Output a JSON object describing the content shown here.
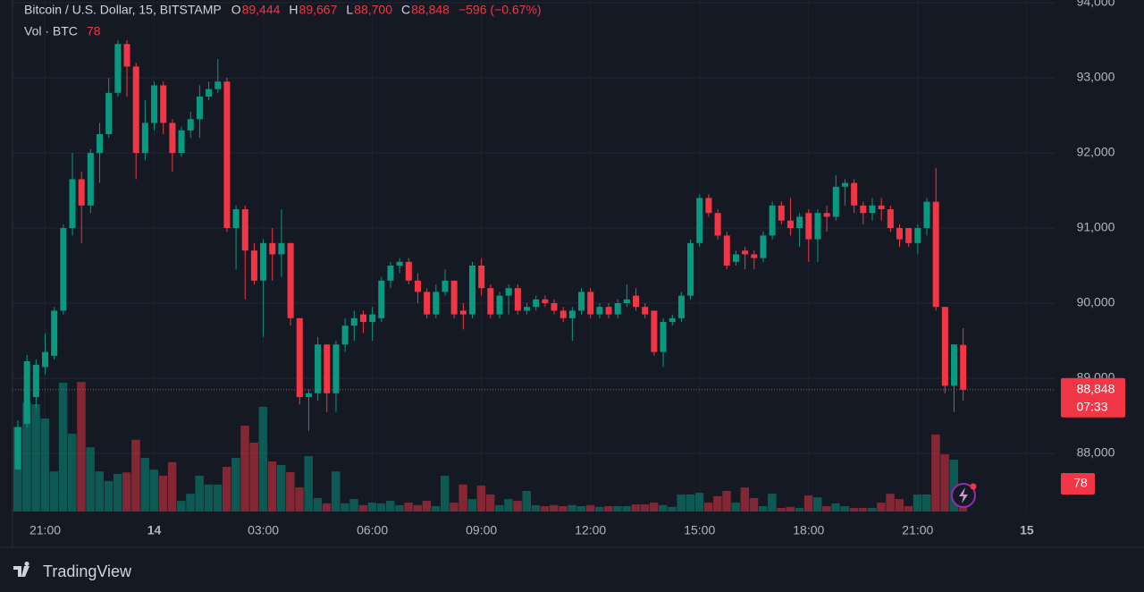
{
  "chart_data": {
    "type": "candlestick",
    "legend": {
      "title": "Bitcoin / U.S. Dollar, 15, BITSTAMP",
      "items": [
        {
          "key": "O",
          "value": "89,444"
        },
        {
          "key": "H",
          "value": "89,667"
        },
        {
          "key": "L",
          "value": "88,700"
        },
        {
          "key": "C",
          "value": "88,848"
        }
      ],
      "change": "−596 (−0.67%)",
      "volume_title": "Vol · BTC",
      "volume_value": "78"
    },
    "categories": [
      "20:15",
      "20:30",
      "20:45",
      "21:00",
      "21:15",
      "21:30",
      "21:45",
      "22:00",
      "22:15",
      "22:30",
      "22:45",
      "23:00",
      "23:15",
      "23:30",
      "23:45",
      "00:00",
      "00:15",
      "00:30",
      "00:45",
      "01:00",
      "01:15",
      "01:30",
      "01:45",
      "02:00",
      "02:15",
      "02:30",
      "02:45",
      "03:00",
      "03:15",
      "03:30",
      "03:45",
      "04:00",
      "04:15",
      "04:30",
      "04:45",
      "05:00",
      "05:15",
      "05:30",
      "05:45",
      "06:00",
      "06:15",
      "06:30",
      "06:45",
      "07:00",
      "07:15",
      "07:30",
      "07:45",
      "08:00",
      "08:15",
      "08:30",
      "08:45",
      "09:00",
      "09:15",
      "09:30",
      "09:45",
      "10:00",
      "10:15",
      "10:30",
      "10:45",
      "11:00",
      "11:15",
      "11:30",
      "11:45",
      "12:00",
      "12:15",
      "12:30",
      "12:45",
      "13:00",
      "13:15",
      "13:30",
      "13:45",
      "14:00",
      "14:15",
      "14:30",
      "14:45",
      "15:00",
      "15:15",
      "15:30",
      "15:45",
      "16:00",
      "16:15",
      "16:30",
      "16:45",
      "17:00",
      "17:15",
      "17:30",
      "17:45",
      "18:00",
      "18:15",
      "18:30",
      "18:45",
      "19:00",
      "19:15",
      "19:30",
      "19:45",
      "20:00",
      "20:15",
      "20:30",
      "20:45",
      "21:00",
      "21:15",
      "21:30",
      "21:45",
      "22:00",
      "22:15"
    ],
    "open": [
      87786,
      88393,
      88750,
      89150,
      89300,
      89900,
      91000,
      91650,
      91300,
      92000,
      92250,
      92800,
      93450,
      93150,
      92000,
      92400,
      92900,
      92400,
      92000,
      92300,
      92450,
      92750,
      92850,
      92950,
      91000,
      91250,
      90700,
      90300,
      90800,
      90650,
      90800,
      89800,
      88750,
      88800,
      89450,
      88800,
      89450,
      89700,
      89850,
      89750,
      89800,
      90300,
      90500,
      90550,
      90300,
      90150,
      89850,
      90150,
      90300,
      89900,
      89850,
      90500,
      90200,
      89850,
      90100,
      90200,
      89900,
      89950,
      90050,
      90000,
      89900,
      89800,
      89900,
      90150,
      89850,
      89950,
      89850,
      90000,
      90100,
      89950,
      89900,
      89350,
      89750,
      89800,
      90100,
      90800,
      91400,
      91200,
      90900,
      90550,
      90700,
      90650,
      90600,
      90900,
      91300,
      91100,
      91000,
      91200,
      90850,
      91200,
      91150,
      91550,
      91600,
      91300,
      91200,
      91300,
      91250,
      91000,
      91000,
      90800,
      91000,
      91350,
      89950,
      88900,
      89444
    ],
    "high": [
      88440,
      89310,
      89250,
      89600,
      89950,
      91050,
      92000,
      91750,
      92050,
      92400,
      93000,
      93500,
      93500,
      93200,
      92700,
      92950,
      92950,
      92450,
      92350,
      92550,
      92900,
      92950,
      93250,
      93000,
      91300,
      91300,
      90800,
      90850,
      91000,
      91250,
      90800,
      89800,
      88850,
      89550,
      89450,
      89500,
      89800,
      89900,
      89900,
      89950,
      90350,
      90550,
      90600,
      90600,
      90400,
      90200,
      90250,
      90450,
      90300,
      90000,
      90550,
      90600,
      90250,
      90150,
      90250,
      90250,
      90000,
      90100,
      90100,
      90050,
      89950,
      89950,
      90200,
      90200,
      90000,
      90000,
      90050,
      90250,
      90200,
      90000,
      89900,
      89800,
      89850,
      90150,
      90850,
      91450,
      91450,
      91250,
      90950,
      90700,
      90750,
      90700,
      90950,
      91350,
      91350,
      91400,
      91200,
      91250,
      91250,
      91300,
      91700,
      91650,
      91650,
      91350,
      91400,
      91400,
      91300,
      91050,
      91000,
      91050,
      91400,
      91800,
      89950,
      89450,
      89667
    ],
    "low": [
      87786,
      88345,
      88600,
      89050,
      89250,
      89850,
      90900,
      90800,
      91200,
      91600,
      92200,
      92750,
      92750,
      91650,
      91900,
      92300,
      92250,
      91750,
      91950,
      92200,
      92200,
      92700,
      92800,
      90950,
      90450,
      90050,
      90250,
      89550,
      90300,
      90350,
      89700,
      88650,
      88300,
      88700,
      88550,
      88550,
      89350,
      89500,
      89600,
      89500,
      89750,
      90200,
      90400,
      90250,
      90000,
      89800,
      89800,
      90100,
      89800,
      89650,
      89800,
      90100,
      89800,
      89800,
      89850,
      89850,
      89850,
      89900,
      89950,
      89850,
      89750,
      89500,
      89850,
      89800,
      89800,
      89800,
      89800,
      89950,
      89900,
      89800,
      89300,
      89150,
      89700,
      89750,
      90050,
      90750,
      91150,
      90850,
      90450,
      90500,
      90450,
      90450,
      90550,
      90850,
      91050,
      90900,
      90750,
      90550,
      90550,
      90950,
      91100,
      91300,
      91200,
      91050,
      91100,
      91100,
      90950,
      90750,
      90750,
      90650,
      90900,
      89900,
      88800,
      88550,
      88700
    ],
    "close": [
      88345,
      89226,
      89180,
      89350,
      89900,
      91000,
      91650,
      91300,
      92000,
      92250,
      92800,
      93450,
      93150,
      92000,
      92400,
      92900,
      92400,
      92000,
      92300,
      92450,
      92750,
      92850,
      92950,
      91000,
      91250,
      90700,
      90300,
      90800,
      90650,
      90800,
      89800,
      88750,
      88800,
      89450,
      88800,
      89450,
      89700,
      89800,
      89750,
      89850,
      90300,
      90500,
      90550,
      90300,
      90150,
      89850,
      90150,
      90300,
      89850,
      89850,
      90500,
      90200,
      89850,
      90100,
      90200,
      89900,
      89950,
      90050,
      90000,
      89900,
      89800,
      89900,
      90150,
      89850,
      89950,
      89850,
      90000,
      90050,
      89950,
      89850,
      89350,
      89750,
      89800,
      90100,
      90800,
      91400,
      91200,
      90900,
      90500,
      90650,
      90650,
      90600,
      90900,
      91300,
      91100,
      91000,
      91150,
      90850,
      91200,
      91150,
      91550,
      91600,
      91300,
      91200,
      91300,
      91250,
      91000,
      90850,
      90800,
      91000,
      91350,
      89950,
      88900,
      89450,
      88848
    ],
    "volume": [
      239,
      307,
      302,
      262,
      113,
      363,
      219,
      365,
      181,
      113,
      86,
      106,
      110,
      202,
      151,
      118,
      101,
      139,
      30,
      50,
      101,
      76,
      76,
      126,
      151,
      242,
      194,
      295,
      141,
      131,
      111,
      68,
      156,
      38,
      23,
      113,
      23,
      35,
      18,
      25,
      23,
      30,
      18,
      25,
      18,
      30,
      15,
      101,
      25,
      76,
      35,
      73,
      48,
      18,
      35,
      30,
      58,
      18,
      15,
      18,
      15,
      18,
      15,
      18,
      13,
      15,
      15,
      15,
      20,
      20,
      25,
      18,
      13,
      48,
      48,
      53,
      25,
      43,
      58,
      25,
      68,
      38,
      15,
      50,
      10,
      13,
      10,
      45,
      40,
      15,
      23,
      15,
      10,
      10,
      10,
      25,
      50,
      35,
      15,
      48,
      48,
      217,
      161,
      146,
      78
    ],
    "up_color": "#089981",
    "down_color": "#f23645",
    "ylim": [
      87226,
      94036
    ],
    "yticks": [
      {
        "value": 88000,
        "label": "88,000"
      },
      {
        "value": 89000,
        "label": "89,000"
      },
      {
        "value": 90000,
        "label": "90,000"
      },
      {
        "value": 91000,
        "label": "91,000"
      },
      {
        "value": 92000,
        "label": "92,000"
      },
      {
        "value": 93000,
        "label": "93,000"
      },
      {
        "value": 94000,
        "label": "94,000"
      }
    ],
    "volume_ylim": [
      0,
      1000
    ],
    "xticks": [
      "21:00",
      {
        "value": "00:00",
        "label": "14"
      },
      "03:00",
      "06:00",
      "09:00",
      "12:00",
      "15:00",
      "18:00",
      "21:00",
      {
        "value": "00:00",
        "label": "15"
      }
    ],
    "grid": true,
    "last_price_label": "88,848",
    "countdown": "07:33",
    "last_volume_label": "78",
    "brand": "TradingView"
  }
}
